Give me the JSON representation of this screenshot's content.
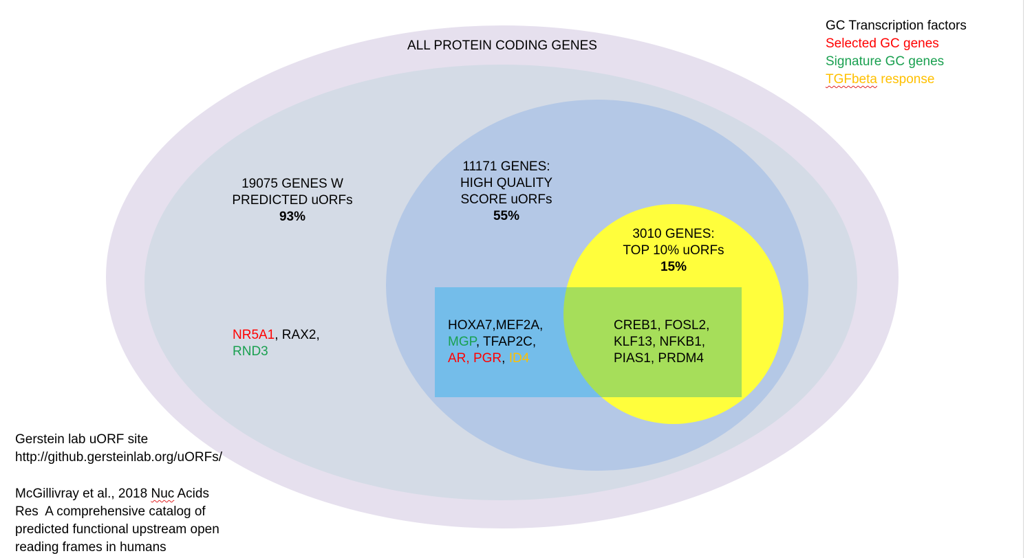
{
  "colors": {
    "outer_ring": "#e6e0ee",
    "outer_ellipse": "#d4dbe6",
    "mid_ellipse": "#b4c8e6",
    "yellow_circle": "#fffe3c",
    "blue_rect": "#74bdea",
    "overlap_green": "#a6de5a",
    "legend_tf": "#000000",
    "legend_selected": "#ff0000",
    "legend_signature": "#1aa050",
    "legend_tgfbeta": "#ffc000"
  },
  "title": "ALL PROTEIN CODING GENES",
  "outer": {
    "line1": "19075 GENES W",
    "line2": "PREDICTED uORFs",
    "pct": "93%"
  },
  "middle": {
    "line1": "11171 GENES:",
    "line2": "HIGH QUALITY",
    "line3": "SCORE uORFs",
    "pct": "55%"
  },
  "inner": {
    "line1": "3010 GENES:",
    "line2": "TOP 10% uORFs",
    "pct": "15%"
  },
  "legend": {
    "tf": "GC Transcription factors",
    "selected": "Selected GC genes",
    "signature": "Signature GC genes",
    "tgf_word": "TGFbeta",
    "tgf_rest": " response"
  },
  "genes_outer": {
    "nr5a1": "NR5A1",
    "sep1": ", RAX2,",
    "rnd3": "RND3"
  },
  "genes_mid": {
    "l1": "HOXA7,MEF2A,",
    "mgp": "MGP",
    "l2_rest": ", TFAP2C,",
    "ar_pgr": "AR, PGR",
    "comma": ", ",
    "id4": "ID4"
  },
  "genes_overlap": {
    "l1": "CREB1, FOSL2,",
    "l2": "KLF13, NFKB1,",
    "l3": "PIAS1, PRDM4"
  },
  "footer": {
    "site": "Gerstein lab uORF site",
    "url": "http://github.gersteinlab.org/uORFs/",
    "cite_pre": "McGillivray et al., 2018 ",
    "cite_nuc": "Nuc",
    "cite_l1_rest": " Acids",
    "cite_l2": "Res  A comprehensive catalog of",
    "cite_l3": "predicted functional upstream open",
    "cite_l4": "reading frames in humans"
  }
}
